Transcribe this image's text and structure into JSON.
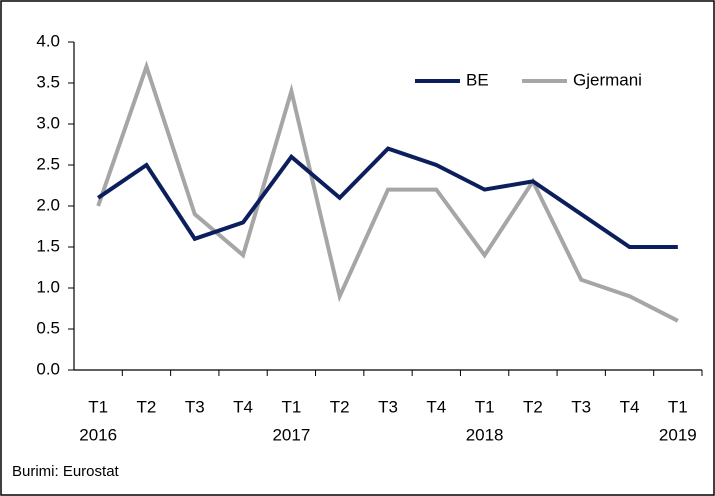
{
  "chart_data": {
    "type": "line",
    "categories": [
      "T1",
      "T2",
      "T3",
      "T4",
      "T1",
      "T2",
      "T3",
      "T4",
      "T1",
      "T2",
      "T3",
      "T4",
      "T1"
    ],
    "category_years": [
      "2016",
      null,
      null,
      null,
      "2017",
      null,
      null,
      null,
      "2018",
      null,
      null,
      null,
      "2019"
    ],
    "series": [
      {
        "name": "BE",
        "color": "#0c1f5c",
        "values": [
          2.1,
          2.5,
          1.6,
          1.8,
          2.6,
          2.1,
          2.7,
          2.5,
          2.2,
          2.3,
          1.9,
          1.5,
          1.5
        ]
      },
      {
        "name": "Gjermani",
        "color": "#a6a6a6",
        "values": [
          2.0,
          3.7,
          1.9,
          1.4,
          3.4,
          0.9,
          2.2,
          2.2,
          1.4,
          2.3,
          1.1,
          0.9,
          0.6
        ]
      }
    ],
    "ylim": [
      0,
      4
    ],
    "yticks": [
      {
        "value": 0,
        "label": "0.0"
      },
      {
        "value": 0.5,
        "label": "0.5"
      },
      {
        "value": 1,
        "label": "1.0"
      },
      {
        "value": 1.5,
        "label": "1.5"
      },
      {
        "value": 2,
        "label": "2.0"
      },
      {
        "value": 2.5,
        "label": "2.5"
      },
      {
        "value": 3,
        "label": "3.0"
      },
      {
        "value": 3.5,
        "label": "3.5"
      },
      {
        "value": 4,
        "label": "4.0"
      }
    ],
    "legend": "top-right",
    "source": "Burimi: Eurostat"
  }
}
